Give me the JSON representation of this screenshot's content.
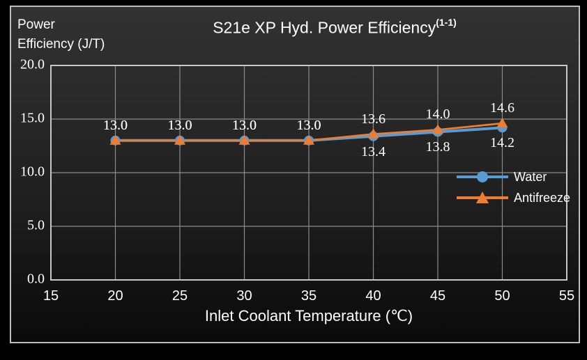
{
  "header": {
    "y_axis_title_line1": "Power",
    "y_axis_title_line2": "Efficiency (J/T)",
    "title": "S21e XP Hyd. Power Efficiency",
    "title_superscript": "(1-1)"
  },
  "colors": {
    "water": "#5B9BD5",
    "antifreeze": "#ED7D31",
    "gridline": "#8C8C8C",
    "plot_border": "#C8C8C8",
    "text": "#FFFFFF"
  },
  "chart_data": {
    "type": "line",
    "title": "S21e XP Hyd. Power Efficiency(1-1)",
    "xlabel": "Inlet Coolant Temperature (℃)",
    "ylabel": "Power Efficiency (J/T)",
    "xlim": [
      15,
      55
    ],
    "ylim": [
      0,
      20
    ],
    "x_ticks": [
      15,
      20,
      25,
      30,
      35,
      40,
      45,
      50,
      55
    ],
    "y_ticks": [
      0,
      5,
      10,
      15,
      20
    ],
    "y_tick_labels": [
      "0.0",
      "5.0",
      "10.0",
      "15.0",
      "20.0"
    ],
    "grid": true,
    "legend_position": "middle-right",
    "x": [
      20,
      25,
      30,
      35,
      40,
      45,
      50
    ],
    "series": [
      {
        "name": "Water",
        "color": "#5B9BD5",
        "marker": "circle",
        "values": [
          13.0,
          13.0,
          13.0,
          13.0,
          13.4,
          13.8,
          14.2
        ],
        "data_labels": [
          "13.0",
          "13.0",
          "13.0",
          "13.0",
          "13.4",
          "13.8",
          "14.2"
        ],
        "label_positions": [
          "above",
          "above",
          "above",
          "above",
          "below",
          "below",
          "below"
        ]
      },
      {
        "name": "Antifreeze",
        "color": "#ED7D31",
        "marker": "triangle",
        "values": [
          13.0,
          13.0,
          13.0,
          13.0,
          13.6,
          14.0,
          14.6
        ],
        "data_labels": [
          "13.0",
          "13.0",
          "13.0",
          "13.0",
          "13.6",
          "14.0",
          "14.6"
        ],
        "label_positions": [
          "above",
          "above",
          "above",
          "above",
          "above",
          "above",
          "above"
        ]
      }
    ]
  }
}
